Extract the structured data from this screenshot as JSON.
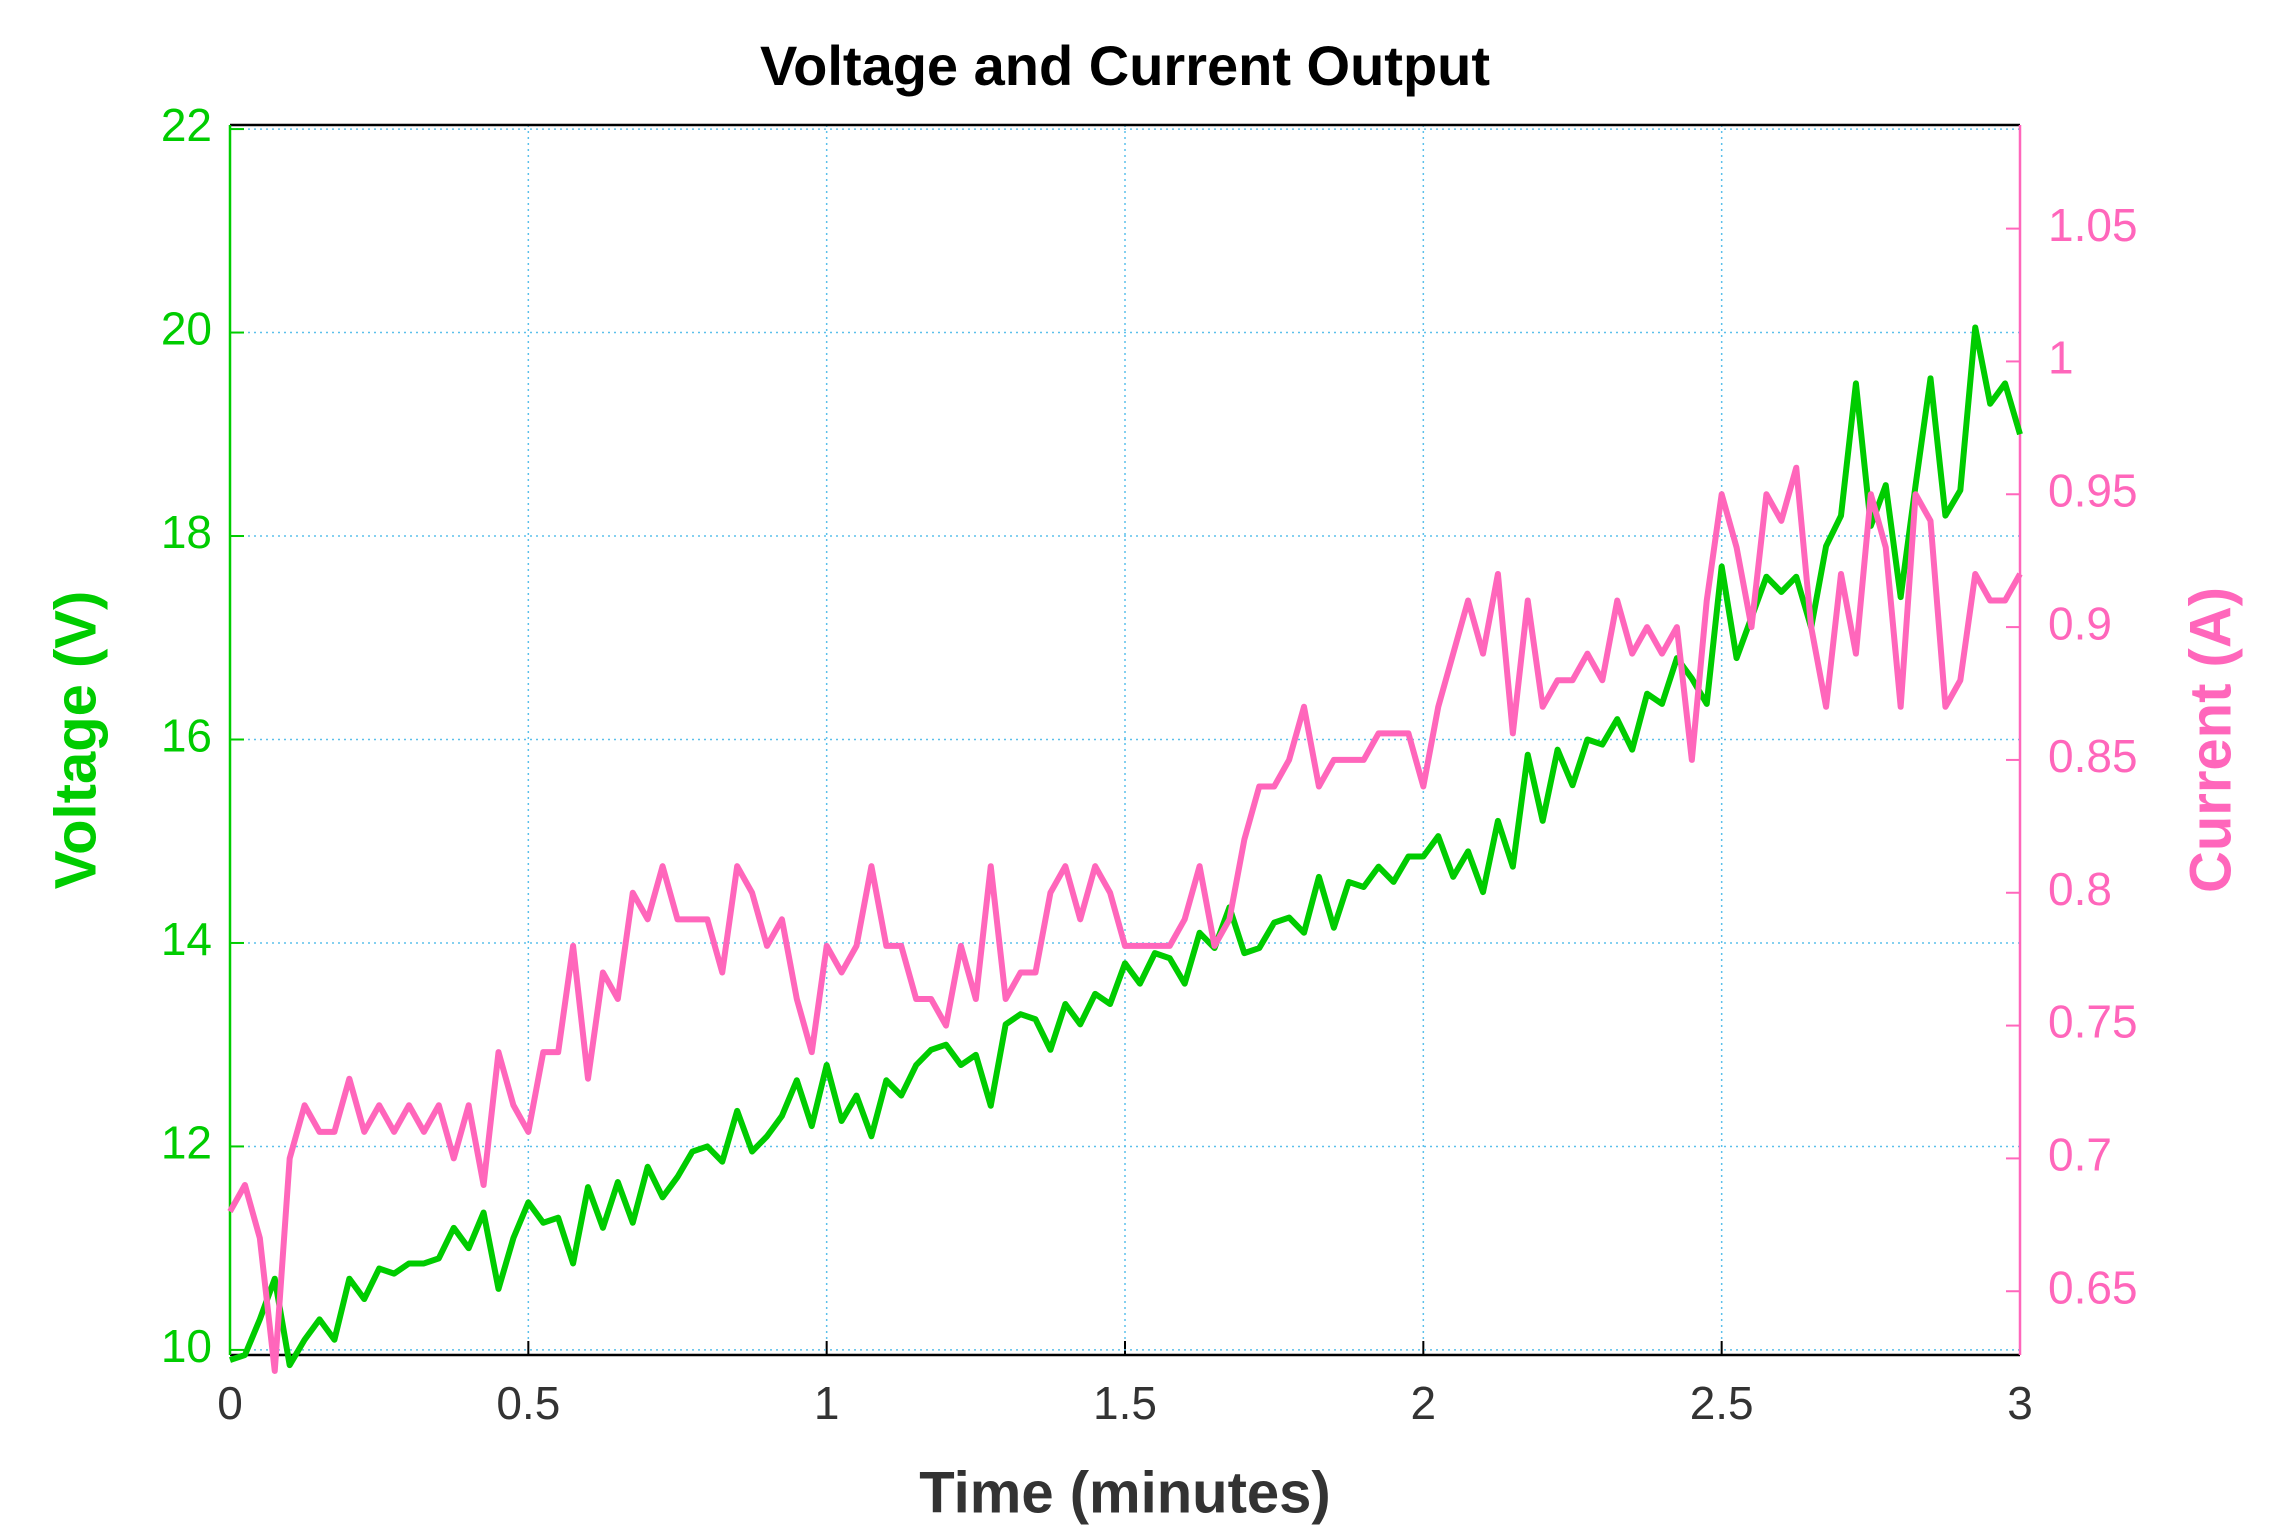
{
  "chart_data": {
    "type": "line",
    "title": "Voltage and Current Output",
    "x_label": "Time (minutes)",
    "y_label": "Voltage (V)",
    "y2_label": "Current (A)",
    "xlim": [
      0,
      3
    ],
    "xticks": [
      0,
      0.5,
      1,
      1.5,
      2,
      2.5,
      3
    ],
    "ylim": [
      9.95,
      22.04
    ],
    "yticks": [
      10,
      12,
      14,
      16,
      18,
      20,
      22
    ],
    "y2lim": [
      0.626,
      1.089
    ],
    "y2ticks": [
      0.65,
      0.7,
      0.75,
      0.8,
      0.85,
      0.9,
      0.95,
      1,
      1.05
    ],
    "grid": true,
    "x": [
      0,
      0.025,
      0.05,
      0.075,
      0.1,
      0.125,
      0.15,
      0.175,
      0.2,
      0.225,
      0.25,
      0.275,
      0.3,
      0.325,
      0.35,
      0.375,
      0.4,
      0.425,
      0.45,
      0.475,
      0.5,
      0.525,
      0.55,
      0.575,
      0.6,
      0.625,
      0.65,
      0.675,
      0.7,
      0.725,
      0.75,
      0.775,
      0.8,
      0.825,
      0.85,
      0.875,
      0.9,
      0.925,
      0.95,
      0.975,
      1,
      1.025,
      1.05,
      1.075,
      1.1,
      1.125,
      1.15,
      1.175,
      1.2,
      1.225,
      1.25,
      1.275,
      1.3,
      1.325,
      1.35,
      1.375,
      1.4,
      1.425,
      1.45,
      1.475,
      1.5,
      1.525,
      1.55,
      1.575,
      1.6,
      1.625,
      1.65,
      1.675,
      1.7,
      1.725,
      1.75,
      1.775,
      1.8,
      1.825,
      1.85,
      1.875,
      1.9,
      1.925,
      1.95,
      1.975,
      2,
      2.025,
      2.05,
      2.075,
      2.1,
      2.125,
      2.15,
      2.175,
      2.2,
      2.225,
      2.25,
      2.275,
      2.3,
      2.325,
      2.35,
      2.375,
      2.4,
      2.425,
      2.45,
      2.475,
      2.5,
      2.525,
      2.55,
      2.575,
      2.6,
      2.625,
      2.65,
      2.675,
      2.7,
      2.725,
      2.75,
      2.775,
      2.8,
      2.825,
      2.85,
      2.875,
      2.9,
      2.925,
      2.95,
      2.975,
      3
    ],
    "series": [
      {
        "name": "Voltage (V)",
        "color": "#00cc00",
        "axis": "y",
        "values": [
          9.9,
          9.95,
          10.3,
          10.7,
          9.85,
          10.1,
          10.3,
          10.1,
          10.7,
          10.5,
          10.8,
          10.75,
          10.85,
          10.85,
          10.9,
          11.2,
          11.0,
          11.35,
          10.6,
          11.1,
          11.45,
          11.25,
          11.3,
          10.85,
          11.6,
          11.2,
          11.65,
          11.25,
          11.8,
          11.5,
          11.7,
          11.95,
          12.0,
          11.85,
          12.35,
          11.95,
          12.1,
          12.3,
          12.65,
          12.2,
          12.8,
          12.25,
          12.5,
          12.1,
          12.65,
          12.5,
          12.8,
          12.95,
          13.0,
          12.8,
          12.9,
          12.4,
          13.2,
          13.3,
          13.25,
          12.95,
          13.4,
          13.2,
          13.5,
          13.4,
          13.8,
          13.6,
          13.9,
          13.85,
          13.6,
          14.1,
          13.95,
          14.35,
          13.9,
          13.95,
          14.2,
          14.25,
          14.1,
          14.65,
          14.15,
          14.6,
          14.55,
          14.75,
          14.6,
          14.85,
          14.85,
          15.05,
          14.65,
          14.9,
          14.5,
          15.2,
          14.75,
          15.85,
          15.2,
          15.9,
          15.55,
          16.0,
          15.95,
          16.2,
          15.9,
          16.45,
          16.35,
          16.8,
          16.6,
          16.35,
          17.7,
          16.8,
          17.2,
          17.6,
          17.45,
          17.6,
          17.1,
          17.9,
          18.2,
          19.5,
          18.1,
          18.5,
          17.4,
          18.5,
          19.55,
          18.2,
          18.45,
          20.05,
          19.3,
          19.5,
          19.0
        ]
      },
      {
        "name": "Current (A)",
        "color": "#ff66bb",
        "axis": "y2",
        "values": [
          0.68,
          0.69,
          0.67,
          0.62,
          0.7,
          0.72,
          0.71,
          0.71,
          0.73,
          0.71,
          0.72,
          0.71,
          0.72,
          0.71,
          0.72,
          0.7,
          0.72,
          0.69,
          0.74,
          0.72,
          0.71,
          0.74,
          0.74,
          0.78,
          0.73,
          0.77,
          0.76,
          0.8,
          0.79,
          0.81,
          0.79,
          0.79,
          0.79,
          0.77,
          0.81,
          0.8,
          0.78,
          0.79,
          0.76,
          0.74,
          0.78,
          0.77,
          0.78,
          0.81,
          0.78,
          0.78,
          0.76,
          0.76,
          0.75,
          0.78,
          0.76,
          0.81,
          0.76,
          0.77,
          0.77,
          0.8,
          0.81,
          0.79,
          0.81,
          0.8,
          0.78,
          0.78,
          0.78,
          0.78,
          0.79,
          0.81,
          0.78,
          0.79,
          0.82,
          0.84,
          0.84,
          0.85,
          0.87,
          0.84,
          0.85,
          0.85,
          0.85,
          0.86,
          0.86,
          0.86,
          0.84,
          0.87,
          0.89,
          0.91,
          0.89,
          0.92,
          0.86,
          0.91,
          0.87,
          0.88,
          0.88,
          0.89,
          0.88,
          0.91,
          0.89,
          0.9,
          0.89,
          0.9,
          0.85,
          0.91,
          0.95,
          0.93,
          0.9,
          0.95,
          0.94,
          0.96,
          0.9,
          0.87,
          0.92,
          0.89,
          0.95,
          0.93,
          0.87,
          0.95,
          0.94,
          0.87,
          0.88,
          0.92,
          0.91,
          0.91,
          0.92
        ]
      }
    ]
  }
}
